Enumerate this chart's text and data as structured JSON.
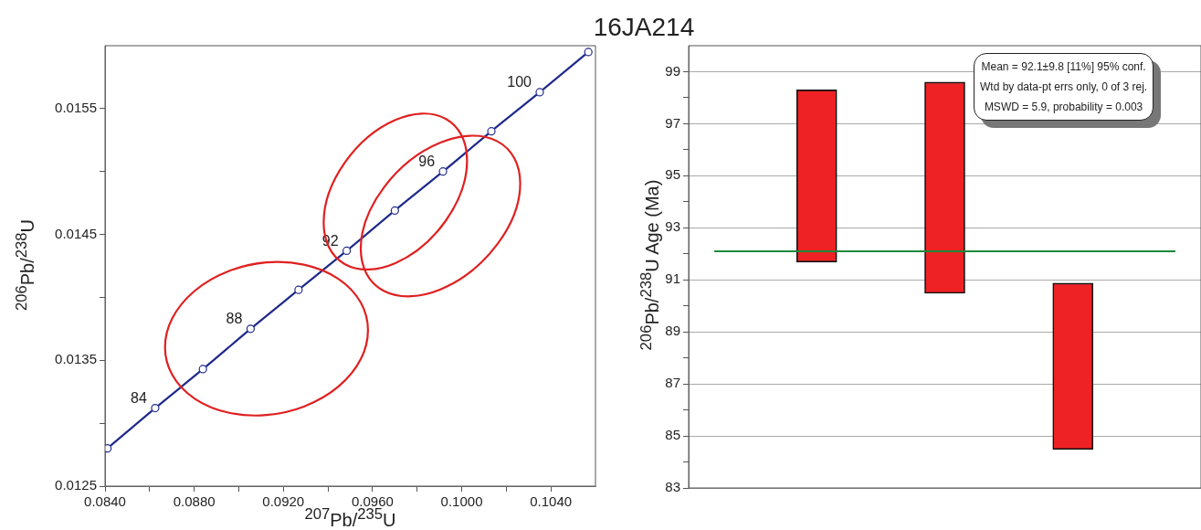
{
  "chart_data": [
    {
      "type": "line",
      "title": "16JA214",
      "xlabel": "$^{207}$Pb/$^{235}$U",
      "ylabel": "$^{206}$Pb/$^{238}$U",
      "xlim": [
        0.084,
        0.106
      ],
      "ylim": [
        0.0125,
        0.016
      ],
      "xticks": [
        {
          "value": 0.084,
          "label": "0.0840"
        },
        {
          "value": 0.086,
          "label": null
        },
        {
          "value": 0.088,
          "label": "0.0880"
        },
        {
          "value": 0.09,
          "label": null
        },
        {
          "value": 0.092,
          "label": "0.0920"
        },
        {
          "value": 0.094,
          "label": null
        },
        {
          "value": 0.096,
          "label": "0.0960"
        },
        {
          "value": 0.098,
          "label": null
        },
        {
          "value": 0.1,
          "label": "0.1000"
        },
        {
          "value": 0.102,
          "label": null
        },
        {
          "value": 0.104,
          "label": "0.1040"
        }
      ],
      "yticks": [
        0.0125,
        {
          "value": 0.013,
          "label": null
        },
        0.0135,
        {
          "value": 0.014,
          "label": null
        },
        0.0145,
        {
          "value": 0.015,
          "label": null
        },
        0.0155
      ],
      "grid": false,
      "series": [
        {
          "type": "line",
          "color": "#1f2a8a",
          "marker": "circle",
          "x": [
            0.08411,
            0.08625,
            0.08839,
            0.09053,
            0.09268,
            0.09484,
            0.097,
            0.09916,
            0.10133,
            0.1035,
            0.10568
          ],
          "values": [
            0.0128,
            0.01312,
            0.01343,
            0.01375,
            0.01406,
            0.01437,
            0.01469,
            0.015,
            0.01532,
            0.01563,
            0.01595
          ]
        }
      ],
      "annotations": [
        {
          "text": "84",
          "x": 0.08625,
          "y": 0.01312
        },
        {
          "text": "88",
          "x": 0.09053,
          "y": 0.01375
        },
        {
          "text": "92",
          "x": 0.09484,
          "y": 0.01437
        },
        {
          "text": "96",
          "x": 0.09916,
          "y": 0.015
        },
        {
          "text": "100",
          "x": 0.1035,
          "y": 0.01563
        }
      ]
    },
    {
      "type": "bar",
      "ylabel": "$^{206}$Pb/$^{238}$U Age (Ma)",
      "categories": [
        null,
        null,
        null
      ],
      "values": [
        6.62,
        8.12,
        6.39
      ],
      "base": [
        91.68,
        90.48,
        84.48
      ],
      "color": "#ee2224",
      "ylim": [
        83,
        100
      ],
      "yticks": [
        83,
        {
          "value": 84,
          "label": null
        },
        85,
        {
          "value": 86,
          "label": null
        },
        87,
        {
          "value": 88,
          "label": null
        },
        89,
        {
          "value": 90,
          "label": null
        },
        91,
        {
          "value": 92,
          "label": null
        },
        93,
        {
          "value": 94,
          "label": null
        },
        95,
        {
          "value": 96,
          "label": null
        },
        97,
        {
          "value": 98,
          "label": null
        },
        99
      ],
      "grid": "y",
      "tick_labels": "y",
      "ref_lines": [
        {
          "axis": "y",
          "value": 92.1,
          "color": "#1a8a3a"
        }
      ],
      "annotations": [
        "Mean = 92.1±9.8  [11%]  95% conf.",
        "Wtd by data-pt errs only, 0 of 3 rej.",
        "MSWD = 5.9, probability = 0.003"
      ]
    }
  ]
}
